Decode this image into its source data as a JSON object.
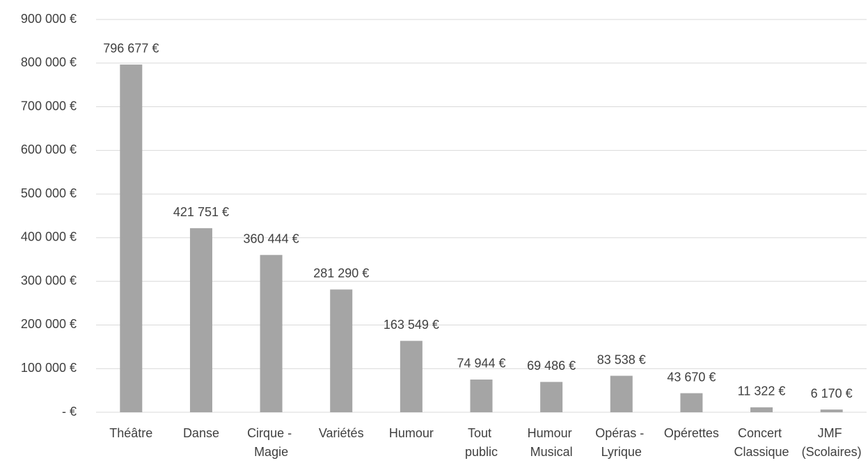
{
  "chart_data": {
    "type": "bar",
    "categories": [
      "Théâtre",
      "Danse",
      "Cirque - Magie",
      "Variétés",
      "Humour",
      "Tout public",
      "Humour Musical",
      "Opéras - Lyrique",
      "Opérettes",
      "Concert Classique",
      "JMF (Scolaires)"
    ],
    "values": [
      796677,
      421751,
      360444,
      281290,
      163549,
      74944,
      69486,
      83538,
      43670,
      11322,
      6170
    ],
    "value_labels": [
      "796 677 €",
      "421 751 €",
      "360 444 €",
      "281 290 €",
      "163 549 €",
      "74 944 €",
      "69 486 €",
      "83 538 €",
      "43 670 €",
      "11 322 €",
      "6 170 €"
    ],
    "color": "#a5a5a5",
    "ylim": [
      0,
      900000
    ],
    "yticks": [
      {
        "value": 0,
        "label": "-  €"
      },
      {
        "value": 100000,
        "label": "100 000 €"
      },
      {
        "value": 200000,
        "label": "200 000 €"
      },
      {
        "value": 300000,
        "label": "300 000 €"
      },
      {
        "value": 400000,
        "label": "400 000 €"
      },
      {
        "value": 500000,
        "label": "500 000 €"
      },
      {
        "value": 600000,
        "label": "600 000 €"
      },
      {
        "value": 700000,
        "label": "700 000 €"
      },
      {
        "value": 800000,
        "label": "800 000 €"
      },
      {
        "value": 900000,
        "label": "900 000 €"
      }
    ],
    "grid": true
  }
}
